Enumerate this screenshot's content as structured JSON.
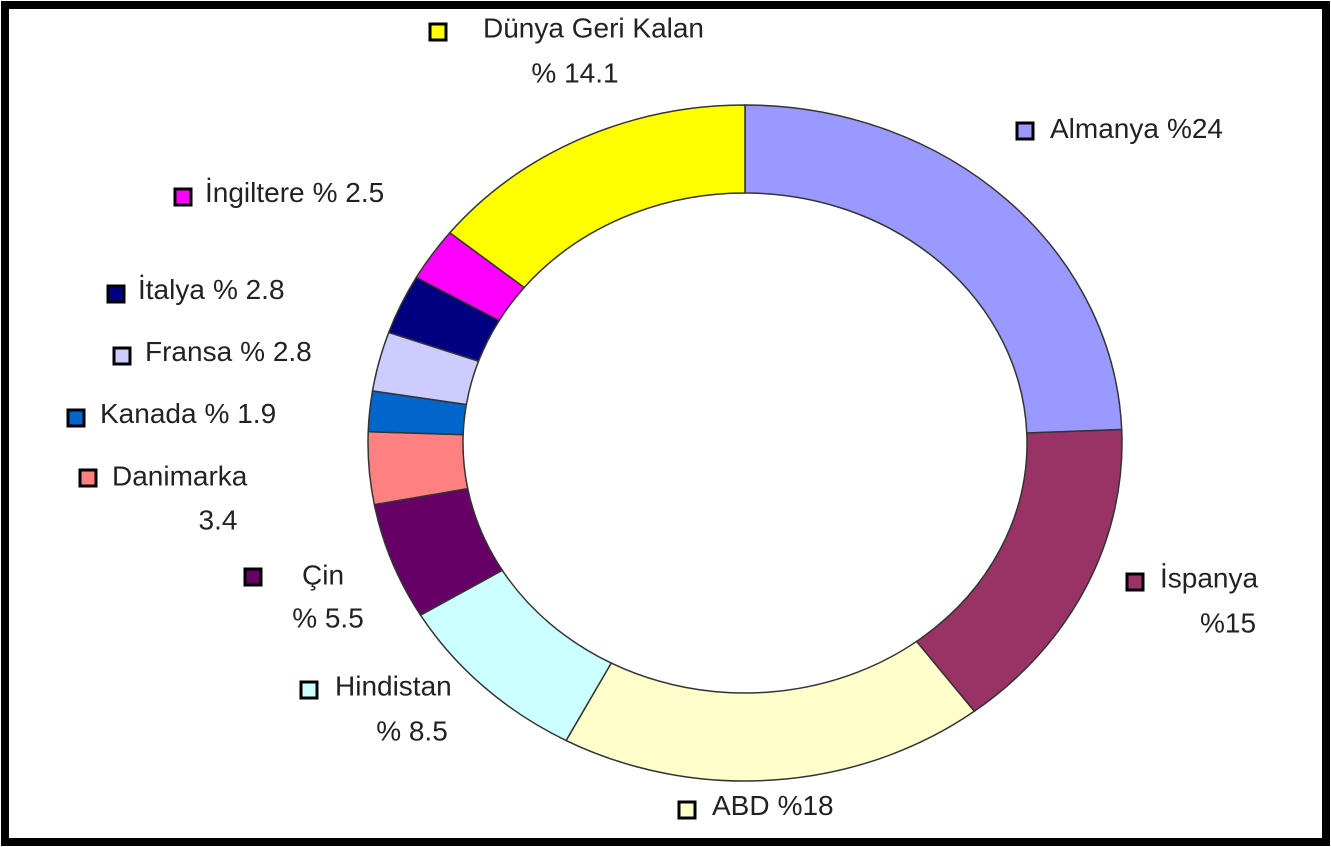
{
  "chart_data": {
    "type": "donut",
    "categories": [
      "Almanya",
      "İspanya",
      "ABD",
      "Hindistan",
      "Çin",
      "Danimarka",
      "Kanada",
      "Fransa",
      "İtalya",
      "İngiltere",
      "Dünya Geri Kalan"
    ],
    "values": [
      24,
      15,
      18,
      8.5,
      5.5,
      3.4,
      1.9,
      2.8,
      2.8,
      2.5,
      14.1
    ],
    "value_labels": [
      "%24",
      "%15",
      "%18",
      "% 8.5",
      "% 5.5",
      "3.4",
      "% 1.9",
      "% 2.8",
      "% 2.8",
      "% 2.5",
      "% 14.1"
    ],
    "colors": [
      "#9999ff",
      "#993366",
      "#ffffcc",
      "#ccffff",
      "#660066",
      "#ff8080",
      "#0066cc",
      "#ccccff",
      "#000080",
      "#ff00ff",
      "#ffff00"
    ]
  }
}
